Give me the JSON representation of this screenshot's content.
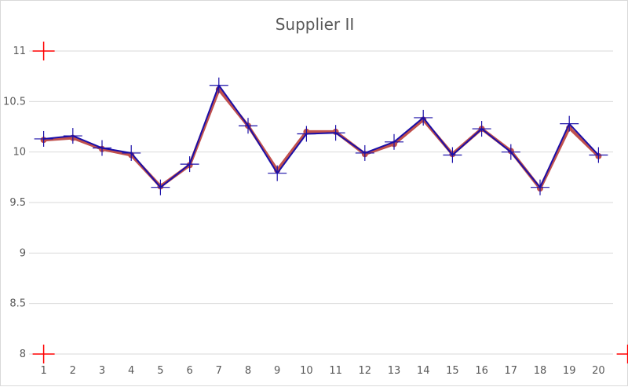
{
  "chart_data": {
    "type": "line",
    "title": "Supplier II",
    "xlabel": "",
    "ylabel": "",
    "categories": [
      "1",
      "2",
      "3",
      "4",
      "5",
      "6",
      "7",
      "8",
      "9",
      "10",
      "11",
      "12",
      "13",
      "14",
      "15",
      "16",
      "17",
      "18",
      "19",
      "20"
    ],
    "ylim": [
      8,
      11
    ],
    "y_ticks": [
      "8",
      "8.5",
      "9",
      "9.5",
      "10",
      "10.5",
      "11"
    ],
    "grid": true,
    "legend": "none",
    "series": [
      {
        "color": "#c0504d",
        "marker": "circle",
        "values": [
          10.12,
          10.14,
          10.03,
          9.97,
          9.66,
          9.87,
          10.62,
          10.26,
          9.82,
          10.2,
          10.2,
          9.98,
          10.08,
          10.32,
          9.98,
          10.23,
          10.01,
          9.64,
          10.24,
          9.96
        ]
      },
      {
        "color": "#1a0fa8",
        "marker": "plus",
        "values": [
          10.13,
          10.16,
          10.04,
          9.99,
          9.65,
          9.88,
          10.66,
          10.26,
          9.79,
          10.18,
          10.19,
          9.99,
          10.1,
          10.34,
          9.97,
          10.23,
          10.0,
          9.65,
          10.28,
          9.97
        ]
      }
    ],
    "corner_markers": [
      {
        "x": 0.5,
        "y": 11,
        "color": "#ff0000"
      },
      {
        "x": 0.5,
        "y": 8,
        "color": "#ff0000"
      },
      {
        "x": 20.5,
        "y": 8,
        "color": "#ff0000"
      }
    ]
  }
}
